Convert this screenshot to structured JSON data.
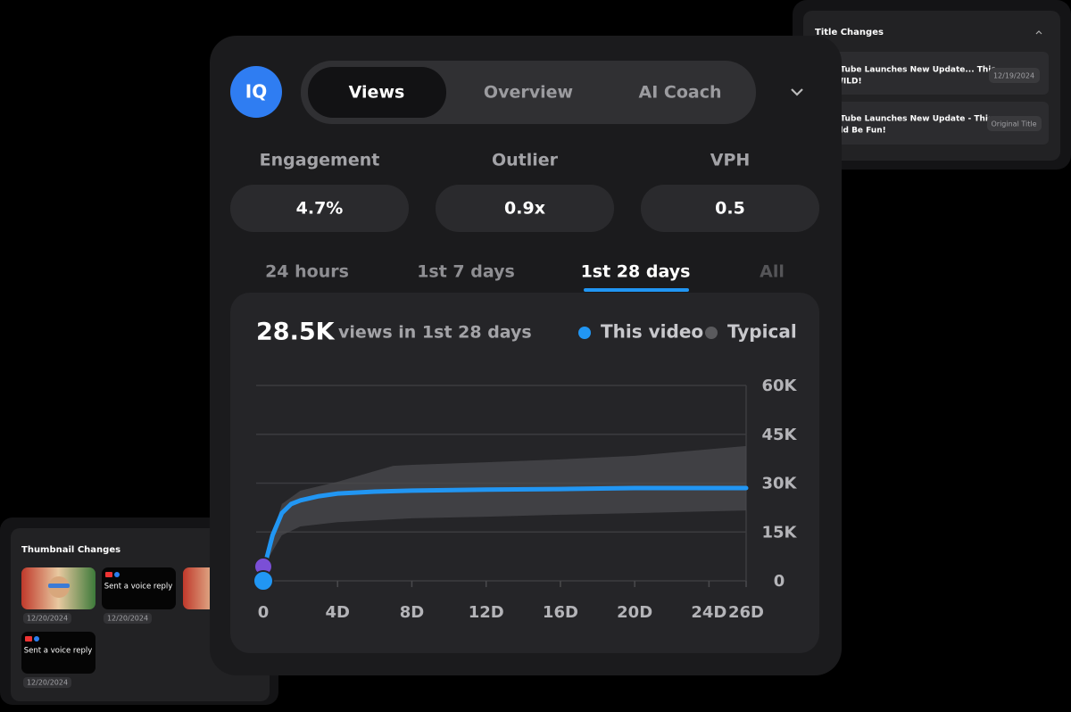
{
  "logo": "IQ",
  "header": {
    "tabs": [
      "Views",
      "Overview",
      "AI Coach"
    ]
  },
  "metrics": [
    {
      "label": "Engagement",
      "value": "4.7%"
    },
    {
      "label": "Outlier",
      "value": "0.9x"
    },
    {
      "label": "VPH",
      "value": "0.5"
    }
  ],
  "periods": [
    "24 hours",
    "1st 7 days",
    "1st 28 days",
    "All"
  ],
  "chart_data": {
    "type": "line",
    "title": "28.5K",
    "subtitle": "views in 1st 28 days",
    "xlim": [
      0,
      26
    ],
    "ylim": [
      0,
      60000
    ],
    "grid": true,
    "xticks": [
      {
        "value": 0,
        "label": "0"
      },
      {
        "value": 4,
        "label": "4D"
      },
      {
        "value": 8,
        "label": "8D"
      },
      {
        "value": 12,
        "label": "12D"
      },
      {
        "value": 16,
        "label": "16D"
      },
      {
        "value": 20,
        "label": "20D"
      },
      {
        "value": 24,
        "label": "24D"
      },
      {
        "value": 26,
        "label": "26D"
      }
    ],
    "yticks": [
      {
        "value": 0,
        "label": "0"
      },
      {
        "value": 15000,
        "label": "15K"
      },
      {
        "value": 30000,
        "label": "30K"
      },
      {
        "value": 45000,
        "label": "45K"
      },
      {
        "value": 60000,
        "label": "60K"
      }
    ],
    "series": [
      {
        "name": "This video",
        "color": "#2196f3",
        "x": [
          0,
          0.5,
          1,
          1.5,
          2,
          3,
          4,
          6,
          8,
          12,
          16,
          20,
          26
        ],
        "values": [
          3000,
          14000,
          20800,
          23600,
          24700,
          26000,
          26800,
          27400,
          27700,
          28000,
          28200,
          28500,
          28500
        ]
      },
      {
        "name": "Typical",
        "color": "#4a4a4d",
        "x": [
          0,
          1,
          2,
          4,
          6,
          7,
          8,
          12,
          16,
          20,
          26
        ],
        "upper": [
          5000,
          23600,
          27700,
          30400,
          33700,
          35300,
          35600,
          36400,
          37300,
          38400,
          41400
        ],
        "lower": [
          4400,
          14000,
          16700,
          18000,
          18600,
          18900,
          19200,
          19700,
          20300,
          20800,
          21600
        ]
      }
    ]
  },
  "title_changes": {
    "title": "Title Changes",
    "rows": [
      {
        "lines": [
          "uTube Launches New Update... This",
          "WILD!"
        ],
        "badge": "12/19/2024"
      },
      {
        "lines": [
          "uTube Launches New Update - This",
          "uld Be Fun!"
        ],
        "badge": "Original Title"
      }
    ]
  },
  "thumbnail_changes": {
    "title": "Thumbnail Changes",
    "items": [
      {
        "caption": null,
        "date": "12/20/2024"
      },
      {
        "caption": "Sent a voice reply",
        "date": "12/20/2024"
      },
      {
        "caption": null,
        "date": null
      },
      {
        "caption": "Sent a voice reply",
        "date": "12/20/2024"
      }
    ]
  }
}
